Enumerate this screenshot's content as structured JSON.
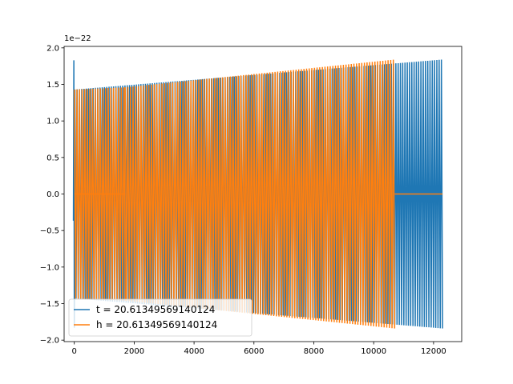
{
  "chart_data": {
    "type": "line",
    "title": "",
    "xlabel": "",
    "ylabel": "",
    "xlim": [
      -340,
      12940
    ],
    "ylim": [
      -2.02,
      2.02
    ],
    "y_scale_label": "1e−22",
    "x_ticks": [
      0,
      2000,
      4000,
      6000,
      8000,
      10000,
      12000
    ],
    "x_tick_labels": [
      "0",
      "2000",
      "4000",
      "6000",
      "8000",
      "10000",
      "12000"
    ],
    "y_ticks": [
      -2.0,
      -1.5,
      -1.0,
      -0.5,
      0.0,
      0.5,
      1.0,
      1.5,
      2.0
    ],
    "y_tick_labels": [
      "−2.0",
      "−1.5",
      "−1.0",
      "−0.5",
      "0.0",
      "0.5",
      "1.0",
      "1.5",
      "2.0"
    ],
    "grid": false,
    "legend_position": "lower-left",
    "series": [
      {
        "name": "t = 20.61349569140124",
        "color": "#1f77b4",
        "shape": "chirp-oscillation",
        "segments": [
          {
            "x_start": -30,
            "x_end": 20,
            "amplitude_start": 1.83,
            "amplitude_end": 1.83
          },
          {
            "x_start": 20,
            "x_end": 12300,
            "amplitude_start": 1.43,
            "amplitude_end": 1.84
          }
        ]
      },
      {
        "name": "h = 20.61349569140124",
        "color": "#ff7f0e",
        "shape": "chirp-oscillation",
        "segments": [
          {
            "x_start": 0,
            "x_end": 1700,
            "amplitude_start": 1.43,
            "amplitude_end": 1.46,
            "has_zero_baseline": true
          },
          {
            "x_start": 1700,
            "x_end": 10700,
            "amplitude_start": 1.46,
            "amplitude_end": 1.84
          },
          {
            "x_start": 10700,
            "x_end": 12300,
            "amplitude_start": 0.0,
            "amplitude_end": 0.0
          }
        ]
      }
    ]
  }
}
